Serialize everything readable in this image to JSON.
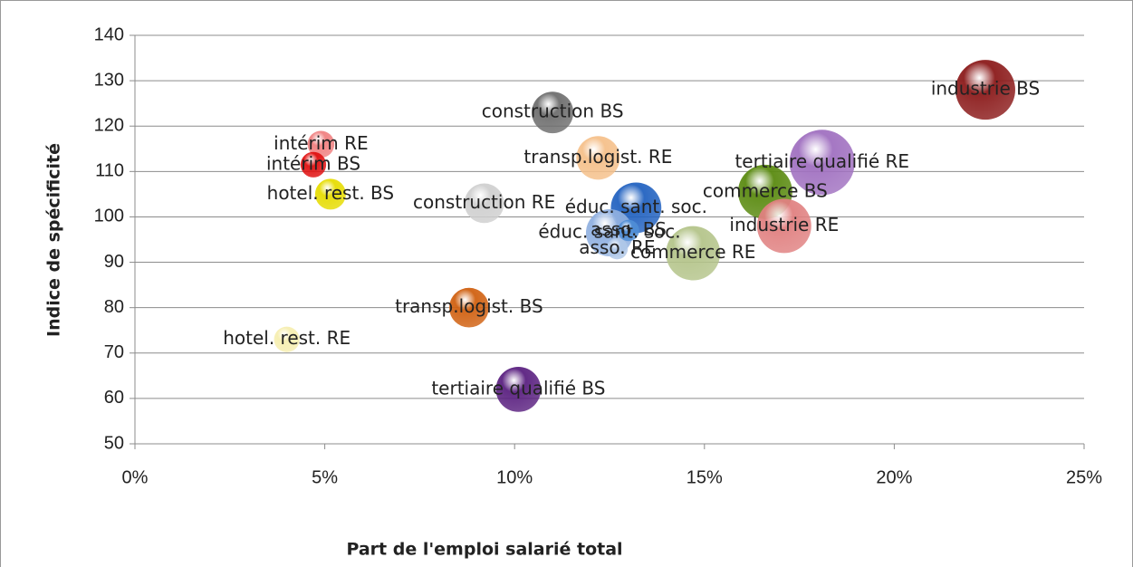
{
  "chart_data": {
    "type": "bubble",
    "xlabel": "Part de l'emploi salarié total",
    "ylabel": "Indice de spécificité",
    "xlim": [
      0,
      25
    ],
    "xticks": [
      {
        "value": 0,
        "label": "0%"
      },
      {
        "value": 5,
        "label": "5%"
      },
      {
        "value": 10,
        "label": "10%"
      },
      {
        "value": 15,
        "label": "15%"
      },
      {
        "value": 20,
        "label": "20%"
      },
      {
        "value": 25,
        "label": "25%"
      }
    ],
    "ylim": [
      50,
      140
    ],
    "yticks": [
      50,
      60,
      70,
      80,
      90,
      100,
      110,
      120,
      130,
      140
    ],
    "grid": true,
    "series": [
      {
        "labels": [
          "industrie BS",
          "construction BS",
          "intérim RE",
          "intérim BS",
          "hotel. rest. BS",
          "construction RE",
          "transp.logist. RE",
          "éduc. sant. soc.",
          "éduc. sant. soc.",
          "asso. BS",
          "asso. RE",
          "commerce RE",
          "commerce BS",
          "tertiaire qualifié RE",
          "industrie RE",
          "transp.logist. BS",
          "hotel. rest. RE",
          "tertiaire qualifié BS"
        ],
        "x": [
          22.4,
          11.0,
          4.9,
          4.7,
          5.15,
          9.2,
          12.2,
          13.2,
          12.5,
          13.0,
          12.7,
          14.7,
          16.6,
          18.1,
          17.1,
          8.8,
          4.0,
          10.1
        ],
        "values": [
          128,
          123,
          116,
          111.5,
          105,
          103,
          113,
          102,
          96.5,
          97,
          93,
          92,
          105.5,
          112,
          98,
          80,
          73,
          62
        ],
        "sizes": [
          109,
          53,
          22,
          20,
          29,
          48,
          58,
          78,
          68,
          14,
          14,
          90,
          90,
          130,
          90,
          48,
          20,
          62
        ],
        "colors": [
          "#8b1a1a",
          "#6e6e6e",
          "#f08080",
          "#e01010",
          "#e6dc00",
          "#cfcfcf",
          "#f5c08a",
          "#2262c0",
          "#90b0e0",
          "#4f8ed6",
          "#b0c8e8",
          "#b4c48a",
          "#5a8a10",
          "#a070c0",
          "#e08080",
          "#d06010",
          "#f6eeb0",
          "#5a2080"
        ]
      }
    ]
  }
}
